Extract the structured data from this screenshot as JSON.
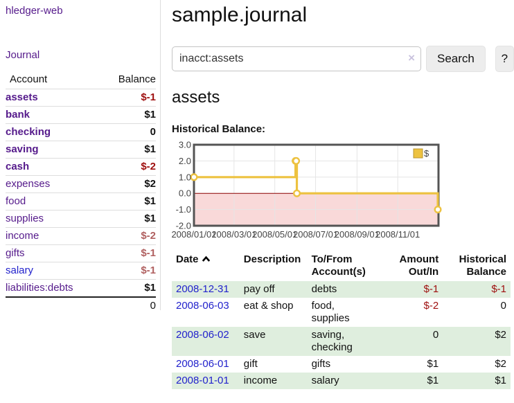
{
  "app": {
    "brand": "hledger-web",
    "journal_link": "Journal"
  },
  "sidebar": {
    "header": {
      "account": "Account",
      "balance": "Balance"
    },
    "accounts": [
      {
        "name": "assets",
        "balance": "$-1",
        "indent": 1,
        "bold": true,
        "balance_style": "neg-strong"
      },
      {
        "name": "bank",
        "balance": "$1",
        "indent": 2,
        "bold": true,
        "balance_style": "normal"
      },
      {
        "name": "checking",
        "balance": "0",
        "indent": 3,
        "bold": true,
        "balance_style": "normal"
      },
      {
        "name": "saving",
        "balance": "$1",
        "indent": 3,
        "bold": true,
        "balance_style": "normal"
      },
      {
        "name": "cash",
        "balance": "$-2",
        "indent": 2,
        "bold": true,
        "balance_style": "neg-strong"
      },
      {
        "name": "expenses",
        "balance": "$2",
        "indent": 1,
        "bold": false,
        "balance_style": "normal"
      },
      {
        "name": "food",
        "balance": "$1",
        "indent": 2,
        "bold": false,
        "balance_style": "normal"
      },
      {
        "name": "supplies",
        "balance": "$1",
        "indent": 2,
        "bold": false,
        "balance_style": "normal"
      },
      {
        "name": "income",
        "balance": "$-2",
        "indent": 1,
        "bold": false,
        "balance_style": "neg-muted"
      },
      {
        "name": "gifts",
        "balance": "$-1",
        "indent": 2,
        "bold": false,
        "balance_style": "neg-muted"
      },
      {
        "name": "salary",
        "balance": "$-1",
        "indent": 2,
        "bold": false,
        "balance_style": "neg-muted",
        "link_color": "blue"
      },
      {
        "name": "liabilities:debts",
        "balance": "$1",
        "indent": 1,
        "bold": false,
        "balance_style": "normal"
      }
    ],
    "total": "0"
  },
  "main": {
    "title": "sample.journal",
    "search": {
      "value": "inacct:assets",
      "clear_icon": "×",
      "button_label": "Search",
      "help_label": "?"
    },
    "account_heading": "assets",
    "chart_heading": "Historical Balance:"
  },
  "chart_data": {
    "type": "line",
    "style": "step",
    "title": "Historical Balance:",
    "legend": {
      "label": "$",
      "position": "top-right"
    },
    "x_min": "2008/01/01",
    "x_max": "2009/01/01",
    "y_min": -2.0,
    "y_max": 3.0,
    "y_ticks": [
      "3.0",
      "2.0",
      "1.0",
      "0.0",
      "-1.0",
      "-2.0"
    ],
    "x_ticks": [
      "2008/01/01",
      "2008/03/01",
      "2008/05/01",
      "2008/07/01",
      "2008/09/01",
      "2008/11/01"
    ],
    "points": [
      [
        "2008/01/01",
        1.0
      ],
      [
        "2008/06/01",
        2.0
      ],
      [
        "2008/06/02",
        2.0
      ],
      [
        "2008/06/03",
        0.0
      ],
      [
        "2008/12/31",
        -1.0
      ]
    ],
    "grid": true,
    "colors": {
      "line": "#edc240",
      "marker_fill": "#ffffff",
      "legend_border": "#b89530",
      "negative_region": "#f9d9d9",
      "zero_line": "#8b0000",
      "grid": "#e5e5e5",
      "border": "#545454",
      "tick_text": "#444444"
    }
  },
  "register": {
    "columns": [
      {
        "label": "Date",
        "sorted": "asc"
      },
      {
        "label": "Description"
      },
      {
        "label": "To/From Account(s)"
      },
      {
        "label": "Amount Out/In",
        "align": "right"
      },
      {
        "label": "Historical Balance",
        "align": "right"
      }
    ],
    "rows": [
      {
        "date": "2008-12-31",
        "description": "pay off",
        "accounts": "debts",
        "amount": "$-1",
        "balance": "$-1"
      },
      {
        "date": "2008-06-03",
        "description": "eat & shop",
        "accounts": "food, supplies",
        "amount": "$-2",
        "balance": "0"
      },
      {
        "date": "2008-06-02",
        "description": "save",
        "accounts": "saving, checking",
        "amount": "0",
        "balance": "$2"
      },
      {
        "date": "2008-06-01",
        "description": "gift",
        "accounts": "gifts",
        "amount": "$1",
        "balance": "$2"
      },
      {
        "date": "2008-01-01",
        "description": "income",
        "accounts": "salary",
        "amount": "$1",
        "balance": "$1"
      }
    ]
  }
}
